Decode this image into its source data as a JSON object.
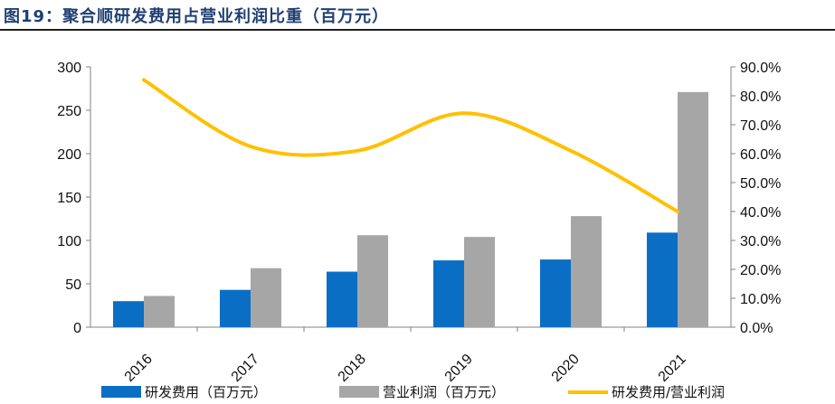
{
  "header": {
    "figure_label": "图19：",
    "title": "聚合顺研发费用占营业利润比重（百万元）"
  },
  "chart_data": {
    "type": "bar",
    "categories": [
      "2016",
      "2017",
      "2018",
      "2019",
      "2020",
      "2021"
    ],
    "series": [
      {
        "name": "研发费用（百万元）",
        "type": "bar",
        "axis": "left",
        "color": "#0a6fc4",
        "values": [
          30,
          43,
          64,
          77,
          78,
          109
        ]
      },
      {
        "name": "营业利润（百万元）",
        "type": "bar",
        "axis": "left",
        "color": "#a6a6a6",
        "values": [
          36,
          68,
          106,
          104,
          128,
          271
        ]
      },
      {
        "name": "研发费用/营业利润",
        "type": "line",
        "axis": "right",
        "color": "#ffc000",
        "values": [
          85.5,
          62.5,
          61.0,
          74.0,
          61.0,
          40.0
        ]
      }
    ],
    "yleft": {
      "ylim": [
        0,
        300
      ],
      "ticks": [
        "0",
        "50",
        "100",
        "150",
        "200",
        "250",
        "300"
      ]
    },
    "yright": {
      "ylim": [
        0,
        90
      ],
      "ticks": [
        "0.0%",
        "10.0%",
        "20.0%",
        "30.0%",
        "40.0%",
        "50.0%",
        "60.0%",
        "70.0%",
        "80.0%",
        "90.0%"
      ]
    },
    "grid": false,
    "legend": "bottom"
  }
}
